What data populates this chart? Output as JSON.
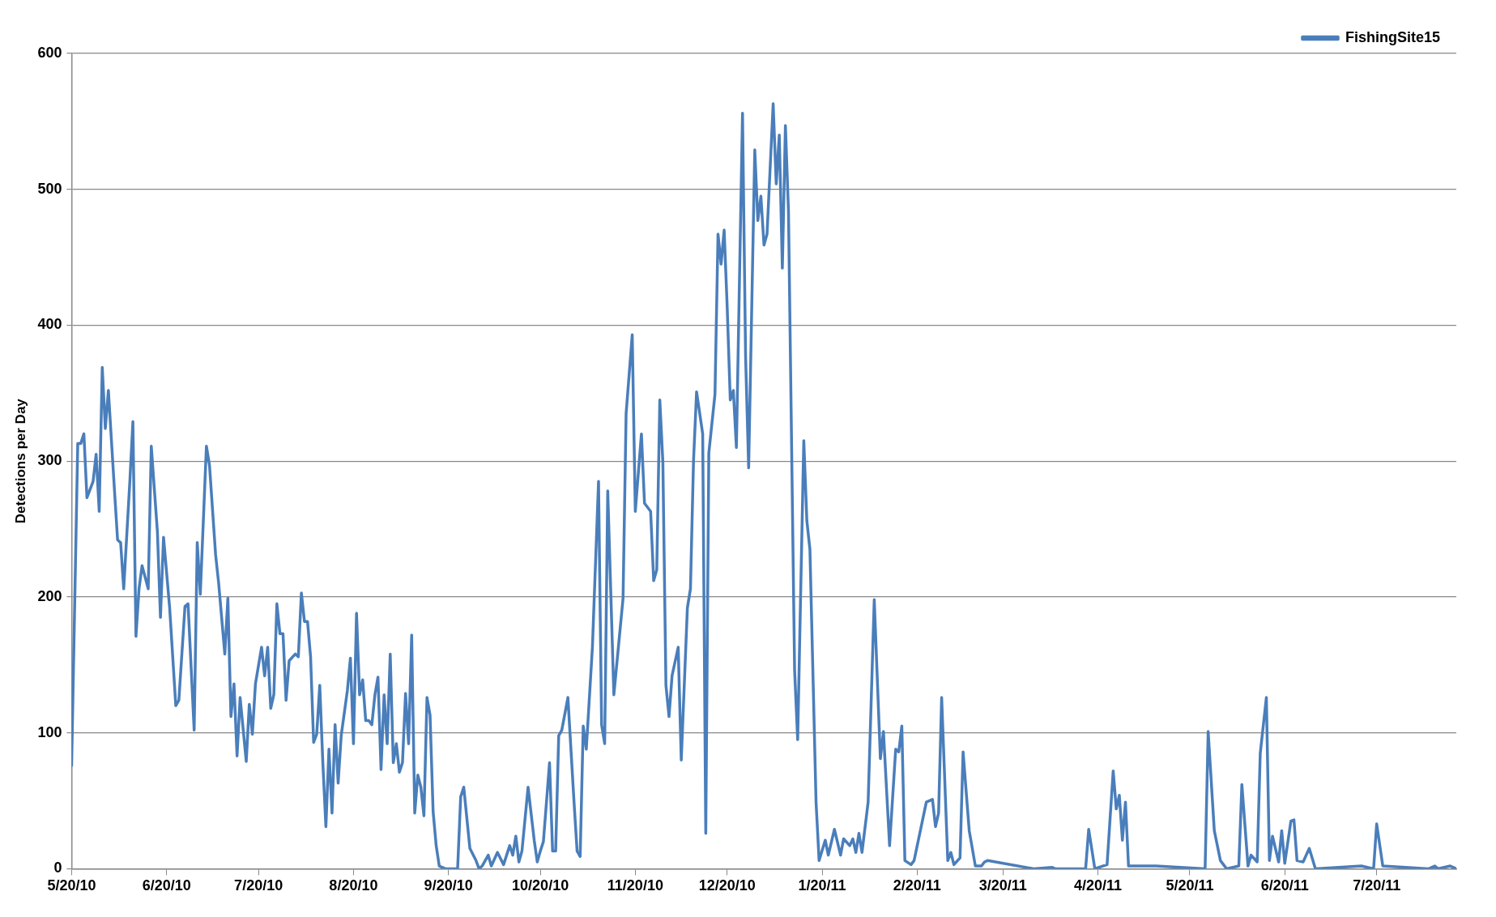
{
  "chart_data": {
    "type": "line",
    "ylabel": "Detections per Day",
    "legend": "top right",
    "grid": "y",
    "marker": "none",
    "line_style": "solid",
    "xlim": [
      "2010-05-20",
      "2011-08-15"
    ],
    "xticks": [
      {
        "value": "2010-05-20",
        "label": "5/20/10"
      },
      {
        "value": "2010-06-20",
        "label": "6/20/10"
      },
      {
        "value": "2010-07-20",
        "label": "7/20/10"
      },
      {
        "value": "2010-08-20",
        "label": "8/20/10"
      },
      {
        "value": "2010-09-20",
        "label": "9/20/10"
      },
      {
        "value": "2010-10-20",
        "label": "10/20/10"
      },
      {
        "value": "2010-11-20",
        "label": "11/20/10"
      },
      {
        "value": "2010-12-20",
        "label": "12/20/10"
      },
      {
        "value": "2011-01-20",
        "label": "1/20/11"
      },
      {
        "value": "2011-02-20",
        "label": "2/20/11"
      },
      {
        "value": "2011-03-20",
        "label": "3/20/11"
      },
      {
        "value": "2011-04-20",
        "label": "4/20/11"
      },
      {
        "value": "2011-05-20",
        "label": "5/20/11"
      },
      {
        "value": "2011-06-20",
        "label": "6/20/11"
      },
      {
        "value": "2011-07-20",
        "label": "7/20/11"
      }
    ],
    "ylim": [
      0,
      600
    ],
    "yticks": [
      0,
      100,
      200,
      300,
      400,
      500,
      600
    ],
    "x": [
      "2010-05-20",
      "2010-05-22",
      "2010-05-23",
      "2010-05-24",
      "2010-05-25",
      "2010-05-27",
      "2010-05-28",
      "2010-05-29",
      "2010-05-30",
      "2010-05-31",
      "2010-06-01",
      "2010-06-03",
      "2010-06-04",
      "2010-06-05",
      "2010-06-06",
      "2010-06-08",
      "2010-06-09",
      "2010-06-10",
      "2010-06-11",
      "2010-06-12",
      "2010-06-14",
      "2010-06-15",
      "2010-06-17",
      "2010-06-18",
      "2010-06-19",
      "2010-06-21",
      "2010-06-23",
      "2010-06-24",
      "2010-06-26",
      "2010-06-27",
      "2010-06-29",
      "2010-06-30",
      "2010-07-01",
      "2010-07-03",
      "2010-07-04",
      "2010-07-06",
      "2010-07-07",
      "2010-07-09",
      "2010-07-10",
      "2010-07-11",
      "2010-07-12",
      "2010-07-13",
      "2010-07-14",
      "2010-07-16",
      "2010-07-17",
      "2010-07-18",
      "2010-07-19",
      "2010-07-21",
      "2010-07-22",
      "2010-07-23",
      "2010-07-24",
      "2010-07-25",
      "2010-07-26",
      "2010-07-27",
      "2010-07-28",
      "2010-07-29",
      "2010-07-30",
      "2010-08-01",
      "2010-08-02",
      "2010-08-03",
      "2010-08-04",
      "2010-08-05",
      "2010-08-06",
      "2010-08-07",
      "2010-08-08",
      "2010-08-09",
      "2010-08-10",
      "2010-08-11",
      "2010-08-12",
      "2010-08-13",
      "2010-08-14",
      "2010-08-15",
      "2010-08-16",
      "2010-08-18",
      "2010-08-19",
      "2010-08-20",
      "2010-08-21",
      "2010-08-22",
      "2010-08-23",
      "2010-08-24",
      "2010-08-25",
      "2010-08-26",
      "2010-08-27",
      "2010-08-28",
      "2010-08-29",
      "2010-08-30",
      "2010-08-31",
      "2010-09-01",
      "2010-09-02",
      "2010-09-03",
      "2010-09-04",
      "2010-09-05",
      "2010-09-06",
      "2010-09-07",
      "2010-09-08",
      "2010-09-09",
      "2010-09-10",
      "2010-09-11",
      "2010-09-12",
      "2010-09-13",
      "2010-09-14",
      "2010-09-15",
      "2010-09-16",
      "2010-09-17",
      "2010-09-19",
      "2010-09-23",
      "2010-09-24",
      "2010-09-25",
      "2010-09-27",
      "2010-09-29",
      "2010-09-30",
      "2010-10-01",
      "2010-10-03",
      "2010-10-04",
      "2010-10-06",
      "2010-10-08",
      "2010-10-09",
      "2010-10-10",
      "2010-10-11",
      "2010-10-12",
      "2010-10-13",
      "2010-10-14",
      "2010-10-16",
      "2010-10-18",
      "2010-10-19",
      "2010-10-20",
      "2010-10-21",
      "2010-10-23",
      "2010-10-24",
      "2010-10-25",
      "2010-10-26",
      "2010-10-27",
      "2010-10-29",
      "2010-10-31",
      "2010-11-01",
      "2010-11-02",
      "2010-11-03",
      "2010-11-04",
      "2010-11-06",
      "2010-11-08",
      "2010-11-09",
      "2010-11-10",
      "2010-11-11",
      "2010-11-13",
      "2010-11-16",
      "2010-11-17",
      "2010-11-19",
      "2010-11-20",
      "2010-11-22",
      "2010-11-23",
      "2010-11-25",
      "2010-11-26",
      "2010-11-27",
      "2010-11-28",
      "2010-11-29",
      "2010-11-30",
      "2010-12-01",
      "2010-12-02",
      "2010-12-04",
      "2010-12-05",
      "2010-12-07",
      "2010-12-08",
      "2010-12-09",
      "2010-12-10",
      "2010-12-12",
      "2010-12-13",
      "2010-12-14",
      "2010-12-16",
      "2010-12-17",
      "2010-12-18",
      "2010-12-19",
      "2010-12-20",
      "2010-12-21",
      "2010-12-22",
      "2010-12-23",
      "2010-12-25",
      "2010-12-26",
      "2010-12-27",
      "2010-12-29",
      "2010-12-30",
      "2010-12-31",
      "2011-01-01",
      "2011-01-02",
      "2011-01-04",
      "2011-01-05",
      "2011-01-06",
      "2011-01-07",
      "2011-01-08",
      "2011-01-09",
      "2011-01-11",
      "2011-01-12",
      "2011-01-14",
      "2011-01-15",
      "2011-01-16",
      "2011-01-18",
      "2011-01-19",
      "2011-01-21",
      "2011-01-22",
      "2011-01-24",
      "2011-01-26",
      "2011-01-27",
      "2011-01-29",
      "2011-01-30",
      "2011-01-31",
      "2011-02-01",
      "2011-02-02",
      "2011-02-04",
      "2011-02-06",
      "2011-02-08",
      "2011-02-09",
      "2011-02-11",
      "2011-02-13",
      "2011-02-14",
      "2011-02-15",
      "2011-02-16",
      "2011-02-18",
      "2011-02-19",
      "2011-02-23",
      "2011-02-25",
      "2011-02-26",
      "2011-02-27",
      "2011-02-28",
      "2011-03-02",
      "2011-03-03",
      "2011-03-04",
      "2011-03-06",
      "2011-03-07",
      "2011-03-09",
      "2011-03-11",
      "2011-03-13",
      "2011-03-14",
      "2011-03-15",
      "2011-03-30",
      "2011-04-05",
      "2011-04-06",
      "2011-04-16",
      "2011-04-17",
      "2011-04-19",
      "2011-04-23",
      "2011-04-25",
      "2011-04-26",
      "2011-04-27",
      "2011-04-28",
      "2011-04-29",
      "2011-04-30",
      "2011-05-09",
      "2011-05-25",
      "2011-05-26",
      "2011-05-28",
      "2011-05-30",
      "2011-06-01",
      "2011-06-05",
      "2011-06-06",
      "2011-06-08",
      "2011-06-09",
      "2011-06-11",
      "2011-06-12",
      "2011-06-14",
      "2011-06-15",
      "2011-06-16",
      "2011-06-18",
      "2011-06-19",
      "2011-06-20",
      "2011-06-22",
      "2011-06-23",
      "2011-06-24",
      "2011-06-26",
      "2011-06-28",
      "2011-06-30",
      "2011-07-15",
      "2011-07-19",
      "2011-07-20",
      "2011-07-22",
      "2011-08-06",
      "2011-08-08",
      "2011-08-09",
      "2011-08-13",
      "2011-08-15"
    ],
    "series": [
      {
        "name": "FishingSite15",
        "color": "#4a7ebb",
        "values": [
          76,
          313,
          313,
          320,
          273,
          285,
          305,
          263,
          369,
          324,
          352,
          278,
          242,
          240,
          206,
          285,
          329,
          171,
          206,
          223,
          206,
          311,
          248,
          185,
          244,
          192,
          120,
          124,
          193,
          195,
          102,
          240,
          202,
          311,
          297,
          231,
          210,
          158,
          199,
          112,
          136,
          83,
          126,
          79,
          121,
          99,
          136,
          163,
          142,
          163,
          118,
          128,
          195,
          173,
          173,
          124,
          153,
          158,
          156,
          203,
          182,
          182,
          156,
          93,
          99,
          135,
          78,
          31,
          88,
          41,
          106,
          63,
          98,
          131,
          155,
          92,
          188,
          128,
          139,
          109,
          109,
          106,
          128,
          141,
          73,
          128,
          92,
          158,
          78,
          92,
          71,
          78,
          129,
          92,
          172,
          41,
          69,
          60,
          39,
          126,
          113,
          42,
          17,
          2,
          0,
          0,
          53,
          60,
          15,
          6,
          0,
          2,
          10,
          2,
          12,
          3,
          10,
          17,
          10,
          24,
          5,
          13,
          60,
          21,
          5,
          13,
          20,
          78,
          13,
          13,
          98,
          102,
          126,
          49,
          13,
          9,
          105,
          88,
          163,
          285,
          106,
          92,
          278,
          128,
          199,
          335,
          393,
          263,
          320,
          269,
          263,
          212,
          220,
          345,
          299,
          135,
          112,
          142,
          163,
          80,
          192,
          206,
          300,
          351,
          320,
          26,
          306,
          349,
          467,
          445,
          470,
          413,
          345,
          352,
          310,
          556,
          377,
          295,
          529,
          477,
          495,
          459,
          467,
          563,
          504,
          540,
          442,
          547,
          484,
          146,
          95,
          315,
          256,
          235,
          49,
          6,
          21,
          10,
          29,
          10,
          22,
          17,
          22,
          12,
          26,
          12,
          49,
          198,
          81,
          101,
          17,
          88,
          86,
          105,
          6,
          3,
          6,
          49,
          51,
          31,
          41,
          126,
          6,
          12,
          3,
          8,
          86,
          28,
          2,
          2,
          5,
          6,
          0,
          1,
          0,
          0,
          29,
          0,
          3,
          72,
          44,
          54,
          21,
          49,
          2,
          2,
          0,
          101,
          28,
          6,
          0,
          2,
          62,
          2,
          10,
          5,
          85,
          126,
          6,
          24,
          5,
          28,
          4,
          35,
          36,
          6,
          5,
          15,
          0,
          2,
          0,
          33,
          2,
          0,
          2,
          0,
          2,
          0
        ]
      }
    ]
  }
}
